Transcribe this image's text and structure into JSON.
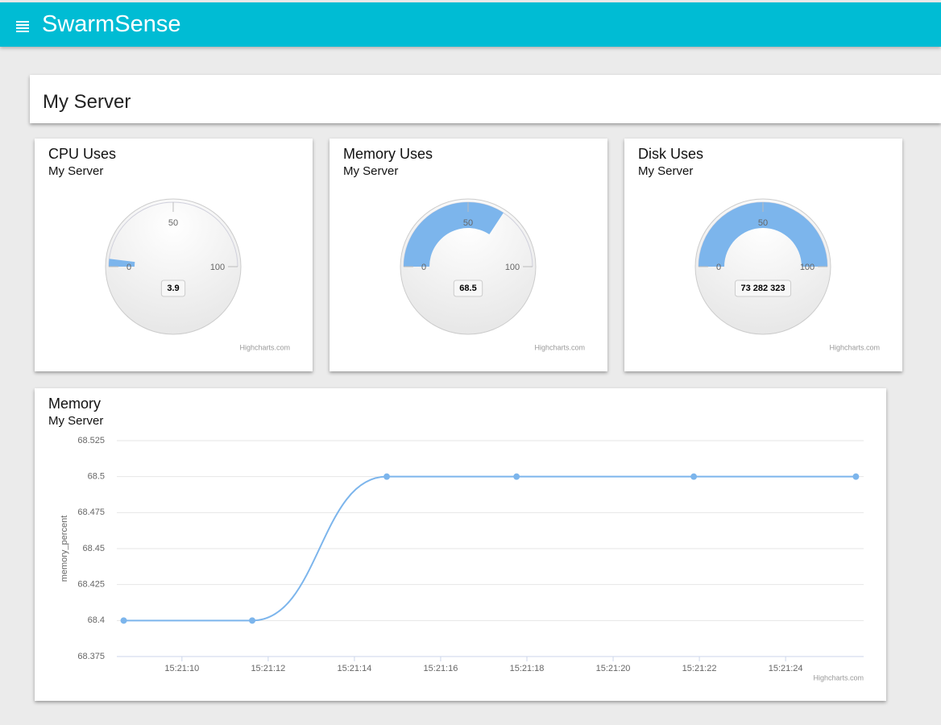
{
  "header": {
    "title": "SwarmSense"
  },
  "page_title": "My Server",
  "chart_data": [
    {
      "type": "gauge",
      "title": "CPU Uses",
      "subtitle": "My Server",
      "value": 3.9,
      "ylim": [
        0,
        100
      ],
      "yticks": [
        0,
        50,
        100
      ],
      "color": "#7cb5ec",
      "credits": "Highcharts.com"
    },
    {
      "type": "gauge",
      "title": "Memory Uses",
      "subtitle": "My Server",
      "value": 68.5,
      "ylim": [
        0,
        100
      ],
      "yticks": [
        0,
        50,
        100
      ],
      "color": "#7cb5ec",
      "credits": "Highcharts.com"
    },
    {
      "type": "gauge",
      "title": "Disk Uses",
      "subtitle": "My Server",
      "value": 73282323,
      "value_label": "73 282 323",
      "ylim": [
        0,
        100
      ],
      "yticks": [
        0,
        50,
        100
      ],
      "color": "#7cb5ec",
      "credits": "Highcharts.com"
    },
    {
      "type": "line",
      "title": "Memory",
      "subtitle": "My Server",
      "y_label": "memory_percent",
      "x": [
        8.65,
        11.63,
        14.75,
        17.76,
        21.87,
        25.63
      ],
      "xlim": [
        8.49,
        25.81
      ],
      "xticks": [
        {
          "value": 10,
          "label": "15:21:10"
        },
        {
          "value": 12,
          "label": "15:21:12"
        },
        {
          "value": 14,
          "label": "15:21:14"
        },
        {
          "value": 16,
          "label": "15:21:16"
        },
        {
          "value": 18,
          "label": "15:21:18"
        },
        {
          "value": 20,
          "label": "15:21:20"
        },
        {
          "value": 22,
          "label": "15:21:22"
        },
        {
          "value": 24,
          "label": "15:21:24"
        }
      ],
      "series": [
        {
          "color": "#7cb5ec",
          "values": [
            68.4,
            68.4,
            68.5,
            68.5,
            68.5,
            68.5
          ]
        }
      ],
      "ylim": [
        68.375,
        68.525
      ],
      "yticks": [
        68.375,
        68.4,
        68.425,
        68.45,
        68.475,
        68.5,
        68.525
      ],
      "grid": true,
      "credits": "Highcharts.com"
    }
  ]
}
